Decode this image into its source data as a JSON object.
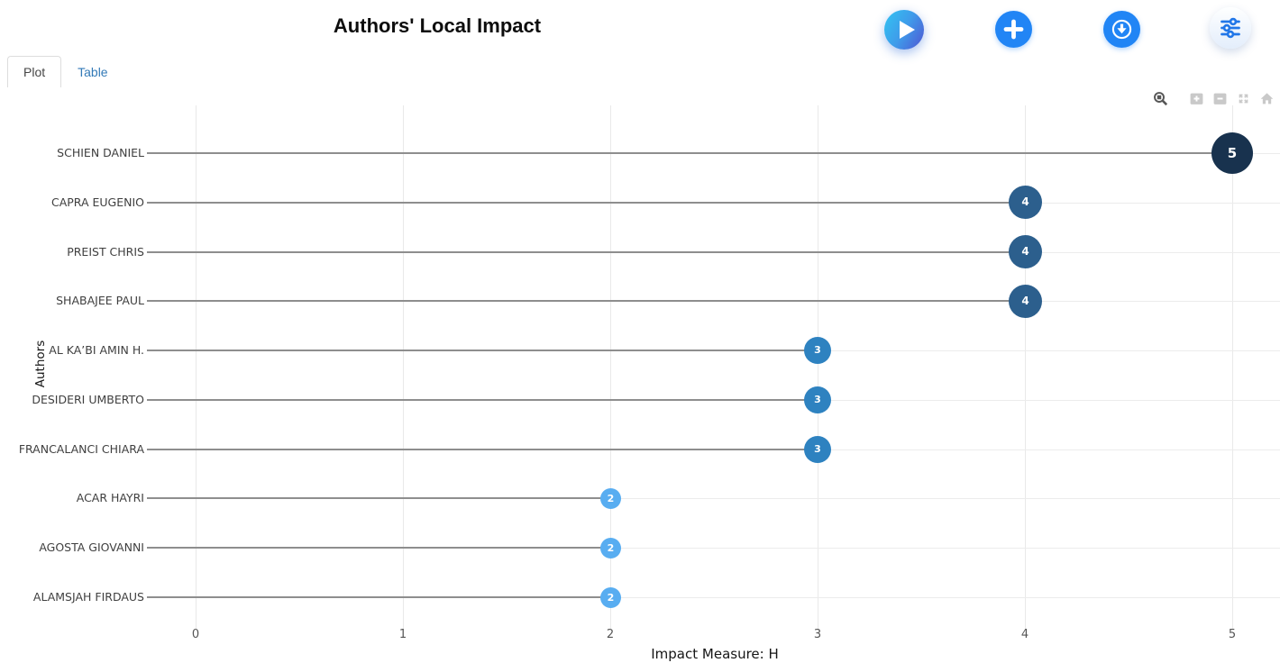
{
  "header": {
    "title": "Authors' Local Impact",
    "buttons": [
      {
        "name": "run",
        "icon": "play-icon"
      },
      {
        "name": "add",
        "icon": "plus-icon"
      },
      {
        "name": "export",
        "icon": "download-icon"
      },
      {
        "name": "filters",
        "icon": "sliders-icon"
      }
    ],
    "accent_color": "#2185f5"
  },
  "tabs": [
    {
      "label": "Plot",
      "active": true
    },
    {
      "label": "Table",
      "active": false
    }
  ],
  "modebar": [
    {
      "icon": "zoom-icon"
    },
    {
      "icon": "zoom-in-icon"
    },
    {
      "icon": "zoom-out-icon"
    },
    {
      "icon": "autoscale-icon"
    },
    {
      "icon": "reset-axes-icon"
    }
  ],
  "chart_data": {
    "type": "lollipop",
    "orientation": "horizontal",
    "title": "Authors' Local Impact",
    "xlabel": "Impact Measure: H",
    "ylabel": "Authors",
    "categories": [
      "SCHIEN DANIEL",
      "CAPRA EUGENIO",
      "PREIST CHRIS",
      "SHABAJEE PAUL",
      "AL KA’BI AMIN H.",
      "DESIDERI UMBERTO",
      "FRANCALANCI CHIARA",
      "ACAR HAYRI",
      "AGOSTA GIOVANNI",
      "ALAMSJAH FIRDAUS"
    ],
    "values": [
      5,
      4,
      4,
      4,
      3,
      3,
      3,
      2,
      2,
      2
    ],
    "xticks": [
      0,
      1,
      2,
      3,
      4,
      5
    ],
    "xlim": [
      0,
      5.23
    ],
    "grid": true,
    "legend": false,
    "point_value_labels": true,
    "style": {
      "value_colors": {
        "2": "#58adf1",
        "3": "#2e82c0",
        "4": "#2c5f8d",
        "5": "#18324e"
      },
      "value_diameters": {
        "2": 23,
        "3": 30,
        "4": 37,
        "5": 46
      },
      "stem_color": "#8e8e8e",
      "grid_color": "#ececec",
      "tick_color": "#555555",
      "label_color": "#3f3f3f"
    }
  }
}
